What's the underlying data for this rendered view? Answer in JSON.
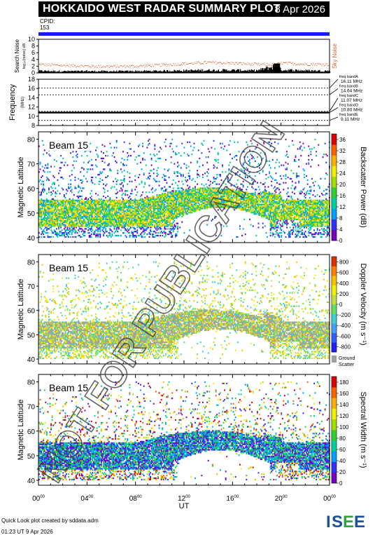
{
  "header": {
    "title": "HOKKAIDO WEST RADAR SUMMARY PLOT",
    "date": "8 Apr 2026",
    "cpid_label": "CPID:",
    "cpid_value": "153"
  },
  "watermark": "NOT FOR PUBLICATION",
  "footer": {
    "credit": "Quick Look plot created by sddata.adm",
    "timestamp": "01:23 UT 9 Apr 2026",
    "logo": "ISEE"
  },
  "colors": {
    "cpid_bar": "#1a1aff",
    "sky_noise": "#e06030",
    "search_noise": "#000000",
    "ground_scatter": "#a0a0a0"
  },
  "chart_data": [
    {
      "type": "line",
      "panel": "noise",
      "ylabel": "Search Noise",
      "yunits": "log₁₀(noise) dB",
      "ylim": [
        0,
        10
      ],
      "yticks": [
        0,
        2,
        4,
        6,
        8,
        10
      ],
      "legend": "Sky Noise",
      "series": [
        {
          "name": "Sky Noise",
          "x": [
            0,
            2,
            4,
            6,
            8,
            10,
            12,
            14,
            16,
            18,
            19.5,
            20,
            22,
            24
          ],
          "values": [
            2.6,
            2.3,
            2.1,
            2.0,
            2.1,
            2.4,
            2.8,
            3.2,
            3.0,
            2.6,
            2.5,
            3.0,
            2.7,
            2.6
          ]
        },
        {
          "name": "Search Noise",
          "x": [
            0,
            2,
            4,
            6,
            8,
            10,
            12,
            14,
            16,
            18,
            19.5,
            20,
            22,
            24
          ],
          "values": [
            0.6,
            0.5,
            0.5,
            0.5,
            0.5,
            0.6,
            0.7,
            0.8,
            0.8,
            0.7,
            2.0,
            0.9,
            0.7,
            0.6
          ]
        }
      ]
    },
    {
      "type": "line",
      "panel": "frequency",
      "ylabel": "Frequency",
      "yunits": "(MHz)",
      "ylim": [
        8,
        18
      ],
      "yticks": [
        8,
        10,
        12,
        14,
        16,
        18
      ],
      "bands": [
        {
          "name": "freq bandA",
          "value": 16.11,
          "label": "16.11 MHz"
        },
        {
          "name": "freq bandB",
          "value": 14.64,
          "label": "14.64 MHz"
        },
        {
          "name": "freq bandC",
          "value": 11.07,
          "label": "11.07 MHz"
        },
        {
          "name": "freq bandD",
          "value": 10.8,
          "label": "10.80 MHz"
        },
        {
          "name": "freq bandE",
          "value": 9.11,
          "label": "9.11 MHz"
        }
      ],
      "series": [
        {
          "name": "operating",
          "x": [
            0,
            24
          ],
          "values": [
            10.8,
            10.8
          ]
        }
      ]
    },
    {
      "type": "heatmap",
      "panel": "power",
      "beam_label": "Beam 15",
      "ylabel": "Magnetic Latitude",
      "ylim": [
        38,
        83
      ],
      "yticks": [
        40,
        50,
        60,
        70,
        80
      ],
      "colorbar_label": "Backscatter Power (dB)",
      "colorbar_ticks": [
        "0",
        "4",
        "8",
        "12",
        "16",
        "20",
        "24",
        "28",
        "32",
        "36"
      ],
      "colorbar_range": [
        0,
        38
      ],
      "colormap": "rainbow"
    },
    {
      "type": "heatmap",
      "panel": "velocity",
      "beam_label": "Beam 15",
      "ylabel": "Magnetic Latitude",
      "ylim": [
        38,
        83
      ],
      "yticks": [
        40,
        50,
        60,
        70,
        80
      ],
      "colorbar_label": "Doppler Velocity (m s⁻¹)",
      "colorbar_ticks": [
        "800",
        "600",
        "400",
        "200",
        "0",
        "-200",
        "-400",
        "-600",
        "-800"
      ],
      "colorbar_range": [
        -900,
        900
      ],
      "colormap": "diverging",
      "ground_scatter_label": [
        "Ground",
        "Scatter"
      ]
    },
    {
      "type": "heatmap",
      "panel": "width",
      "beam_label": "Beam 15",
      "ylabel": "Magnetic Latitude",
      "ylim": [
        38,
        83
      ],
      "yticks": [
        40,
        50,
        60,
        70,
        80
      ],
      "colorbar_label": "Spectral Width (m s⁻¹)",
      "colorbar_ticks": [
        "0",
        "20",
        "40",
        "60",
        "80",
        "100",
        "120",
        "140",
        "160",
        "180"
      ],
      "colorbar_range": [
        0,
        190
      ],
      "colormap": "rainbow"
    }
  ],
  "x_axis": {
    "label": "UT",
    "range": [
      0,
      24
    ],
    "ticks": [
      "00",
      "04",
      "08",
      "12",
      "16",
      "20",
      "00"
    ],
    "tick_sup": "00"
  }
}
